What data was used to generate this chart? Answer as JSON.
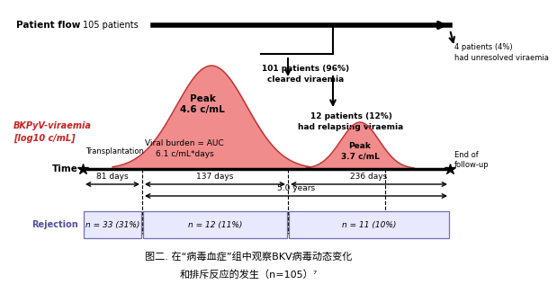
{
  "title_line1": "图二. 在“病毒血症”组中观察BKV病毒动态变化",
  "title_line2": "和排斥反应的发生（n=105）⁷",
  "bg_color": "#ffffff",
  "patient_flow_label": "Patient flow",
  "patient_flow_value": "105 patients",
  "bkpyv_label": "BKPyV-viraemia\n[log10 c/mL]",
  "rejection_label": "Rejection",
  "transplantation_label": "Transplantation",
  "end_followup_label": "End of\nfollow-up",
  "peak1_label": "Peak\n4.6 c/mL",
  "peak2_label": "Peak\n3.7 c/mL",
  "auc_label": "Viral burden = AUC\n6.1 c/mL*days",
  "days1": "81 days",
  "days2": "137 days",
  "days3": "236 days",
  "years_label": "5.0 years",
  "patients_101": "101 patients (96%)\ncleared viraemia",
  "patients_4": "4 patients (4%)\nhad unresolved viraemia",
  "patients_12": "12 patients (12%)\nhad relapsing viraemia",
  "rejection1": "n = 33 (31%)",
  "rejection2": "n = 12 (11%)",
  "rejection3": "n = 11 (10%)",
  "peak_color": "#f08080",
  "peak_edge_color": "#c03030",
  "rejection_box_edge": "#7070b0",
  "rejection_box_face": "#e8e8ff",
  "rejection_label_color": "#5050a0",
  "bkpyv_label_color": "#cc2222"
}
